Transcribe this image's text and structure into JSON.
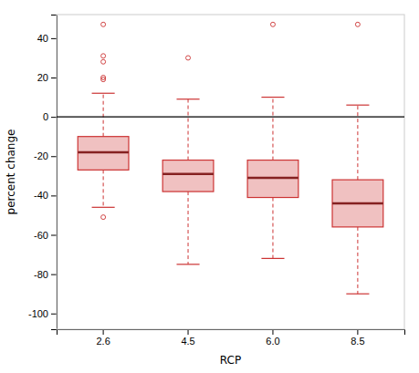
{
  "chart_data": {
    "type": "box",
    "categories": [
      "2.6",
      "4.5",
      "6.0",
      "8.5"
    ],
    "xlabel": "RCP",
    "ylabel": "percent change",
    "ylim": [
      -108,
      52
    ],
    "yticks": [
      -100,
      -80,
      -60,
      -40,
      -20,
      0,
      20,
      40
    ],
    "hline_y": 0,
    "color": "#CC3333",
    "boxes": [
      {
        "q1": -27,
        "median": -18,
        "q3": -10,
        "whisker_low": -46,
        "whisker_high": 12,
        "outliers": [
          47,
          31,
          28,
          20,
          19,
          -51
        ]
      },
      {
        "q1": -38,
        "median": -29,
        "q3": -22,
        "whisker_low": -75,
        "whisker_high": 9,
        "outliers": [
          30
        ]
      },
      {
        "q1": -41,
        "median": -31,
        "q3": -22,
        "whisker_low": -72,
        "whisker_high": 10,
        "outliers": [
          47
        ]
      },
      {
        "q1": -56,
        "median": -44,
        "q3": -32,
        "whisker_low": -90,
        "whisker_high": 6,
        "outliers": [
          47
        ]
      }
    ]
  }
}
